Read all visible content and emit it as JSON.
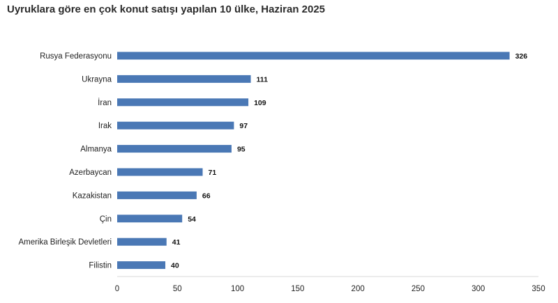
{
  "title": "Uyruklara göre en çok konut satışı yapılan 10 ülke, Haziran 2025",
  "chart_data": {
    "type": "bar",
    "orientation": "horizontal",
    "title": "Uyruklara göre en çok konut satışı yapılan 10 ülke, Haziran 2025",
    "categories": [
      "Rusya Federasyonu",
      "Ukrayna",
      "İran",
      "Irak",
      "Almanya",
      "Azerbaycan",
      "Kazakistan",
      "Çin",
      "Amerika Birleşik Devletleri",
      "Filistin"
    ],
    "values": [
      326,
      111,
      109,
      97,
      95,
      71,
      66,
      54,
      41,
      40
    ],
    "xlim": [
      0,
      350
    ],
    "xticks": [
      0,
      50,
      100,
      150,
      200,
      250,
      300,
      350
    ],
    "data_labels": true,
    "grid": false,
    "legend": "none",
    "bar_color": "#4a78b5",
    "axis_color": "#d9d9d9"
  }
}
